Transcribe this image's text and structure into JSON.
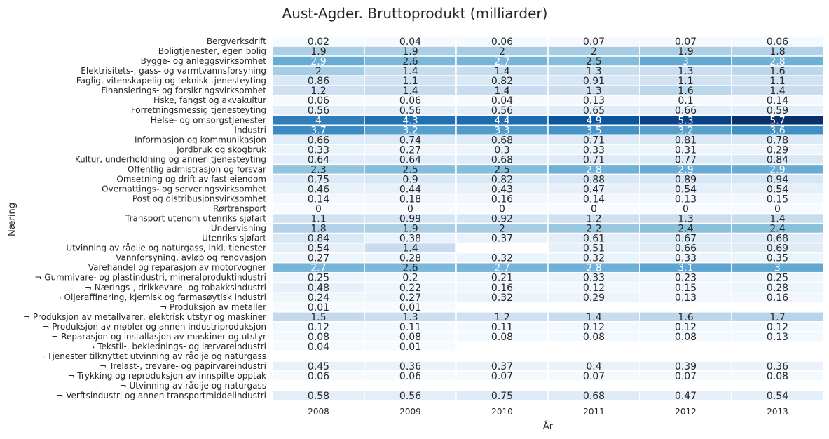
{
  "chart_data": {
    "type": "heatmap",
    "title": "Aust-Agder. Bruttoprodukt (milliarder)",
    "xlabel": "År",
    "ylabel": "Næring",
    "columns": [
      "2008",
      "2009",
      "2010",
      "2011",
      "2012",
      "2013"
    ],
    "color_scale": {
      "name": "Blues",
      "min": 0,
      "max": 5.7,
      "low": "#f7fbff",
      "high": "#08306b"
    },
    "rows": [
      {
        "label": "Bergverksdrift",
        "values": [
          "0.02",
          "0.04",
          "0.06",
          "0.07",
          "0.07",
          "0.06"
        ]
      },
      {
        "label": "Boligtjenester, egen bolig",
        "values": [
          "1.9",
          "1.9",
          "2",
          "2",
          "1.9",
          "1.8"
        ]
      },
      {
        "label": "Bygge- og anleggsvirksomhet",
        "values": [
          "2.9",
          "2.6",
          "2.7",
          "2.5",
          "3",
          "2.8"
        ]
      },
      {
        "label": "Elektrisitets-, gass- og varmtvannsforsyning",
        "values": [
          "2",
          "1.4",
          "1.4",
          "1.3",
          "1.3",
          "1.6"
        ]
      },
      {
        "label": "Faglig, vitenskapelig og teknisk tjenesteyting",
        "values": [
          "0.86",
          "1.1",
          "0.82",
          "0.91",
          "1.1",
          "1.1"
        ]
      },
      {
        "label": "Finansierings- og forsikringsvirksomhet",
        "values": [
          "1.2",
          "1.4",
          "1.4",
          "1.3",
          "1.6",
          "1.4"
        ]
      },
      {
        "label": "Fiske, fangst og akvakultur",
        "values": [
          "0.06",
          "0.06",
          "0.04",
          "0.13",
          "0.1",
          "0.14"
        ]
      },
      {
        "label": "Forretningsmessig tjenesteyting",
        "values": [
          "0.56",
          "0.56",
          "0.56",
          "0.65",
          "0.66",
          "0.59"
        ]
      },
      {
        "label": "Helse- og omsorgstjenester",
        "values": [
          "4",
          "4.3",
          "4.4",
          "4.9",
          "5.3",
          "5.7"
        ]
      },
      {
        "label": "Industri",
        "values": [
          "3.7",
          "3.2",
          "3.3",
          "3.5",
          "3.2",
          "3.6"
        ]
      },
      {
        "label": "Informasjon og kommunikasjon",
        "values": [
          "0.66",
          "0.74",
          "0.68",
          "0.71",
          "0.81",
          "0.78"
        ]
      },
      {
        "label": "Jordbruk og skogbruk",
        "values": [
          "0.33",
          "0.27",
          "0.3",
          "0.33",
          "0.31",
          "0.29"
        ]
      },
      {
        "label": "Kultur, underholdning og annen tjenesteyting",
        "values": [
          "0.64",
          "0.64",
          "0.68",
          "0.71",
          "0.77",
          "0.84"
        ]
      },
      {
        "label": "Offentlig admistrasjon og forsvar",
        "values": [
          "2.3",
          "2.5",
          "2.5",
          "2.8",
          "2.9",
          "2.9"
        ]
      },
      {
        "label": "Omsetning og drift av fast eiendom",
        "values": [
          "0.75",
          "0.9",
          "0.82",
          "0.88",
          "0.89",
          "0.94"
        ]
      },
      {
        "label": "Overnattings- og serveringsvirksomhet",
        "values": [
          "0.46",
          "0.44",
          "0.43",
          "0.47",
          "0.54",
          "0.54"
        ]
      },
      {
        "label": "Post og distribusjonsvirksomhet",
        "values": [
          "0.14",
          "0.18",
          "0.16",
          "0.14",
          "0.13",
          "0.15"
        ]
      },
      {
        "label": "Rørtransport",
        "values": [
          "0",
          "0",
          "0",
          "0",
          "0",
          "0"
        ]
      },
      {
        "label": "Transport utenom utenriks sjøfart",
        "values": [
          "1.1",
          "0.99",
          "0.92",
          "1.2",
          "1.3",
          "1.4"
        ]
      },
      {
        "label": "Undervisning",
        "values": [
          "1.8",
          "1.9",
          "2",
          "2.2",
          "2.4",
          "2.4"
        ]
      },
      {
        "label": "Utenriks sjøfart",
        "values": [
          "0.84",
          "0.38",
          "0.37",
          "0.61",
          "0.67",
          "0.68"
        ]
      },
      {
        "label": "Utvinning av råolje og naturgass, inkl. tjenester",
        "values": [
          "0.54",
          "1.4",
          null,
          "0.51",
          "0.66",
          "0.69"
        ]
      },
      {
        "label": "Vannforsyning, avløp og renovasjon",
        "values": [
          "0.27",
          "0.28",
          "0.32",
          "0.32",
          "0.33",
          "0.35"
        ]
      },
      {
        "label": "Varehandel og reparasjon av motorvogner",
        "values": [
          "2.7",
          "2.6",
          "2.7",
          "2.8",
          "3.1",
          "3"
        ]
      },
      {
        "label": "¬ Gummivare- og plastindustri, mineralproduktindustri",
        "values": [
          "0.25",
          "0.2",
          "0.21",
          "0.33",
          "0.23",
          "0.25"
        ]
      },
      {
        "label": "¬ Nærings-, drikkevare- og tobakksindustri",
        "values": [
          "0.48",
          "0.22",
          "0.16",
          "0.12",
          "0.15",
          "0.28"
        ]
      },
      {
        "label": "¬ Oljeraffinering, kjemisk og farmasøytisk industri",
        "values": [
          "0.24",
          "0.27",
          "0.32",
          "0.29",
          "0.13",
          "0.16"
        ]
      },
      {
        "label": "¬ Produksjon av metaller",
        "values": [
          "0.01",
          "0.01",
          null,
          null,
          null,
          null
        ]
      },
      {
        "label": "¬ Produksjon av metallvarer, elektrisk utstyr og maskiner",
        "values": [
          "1.5",
          "1.3",
          "1.2",
          "1.4",
          "1.6",
          "1.7"
        ]
      },
      {
        "label": "¬ Produksjon av møbler og annen industriproduksjon",
        "values": [
          "0.12",
          "0.11",
          "0.11",
          "0.12",
          "0.12",
          "0.12"
        ]
      },
      {
        "label": "¬ Reparasjon og installasjon av maskiner og utstyr",
        "values": [
          "0.08",
          "0.08",
          "0.08",
          "0.08",
          "0.08",
          "0.13"
        ]
      },
      {
        "label": "¬ Tekstil-, beklednings- og lærvareindustri",
        "values": [
          "0.04",
          "0.01",
          null,
          null,
          null,
          null
        ]
      },
      {
        "label": "¬ Tjenester tilknyttet utvinning av råolje og naturgass",
        "values": [
          null,
          null,
          null,
          null,
          null,
          null
        ]
      },
      {
        "label": "¬ Trelast-, trevare- og papirvareindustri",
        "values": [
          "0.45",
          "0.36",
          "0.37",
          "0.4",
          "0.39",
          "0.36"
        ]
      },
      {
        "label": "¬ Trykking og reproduksjon av innspilte opptak",
        "values": [
          "0.06",
          "0.06",
          "0.07",
          "0.07",
          "0.07",
          "0.08"
        ]
      },
      {
        "label": "¬ Utvinning av råolje og naturgass",
        "values": [
          null,
          null,
          null,
          null,
          null,
          null
        ]
      },
      {
        "label": "¬ Verftsindustri og annen transportmiddelindustri",
        "values": [
          "0.58",
          "0.56",
          "0.75",
          "0.68",
          "0.47",
          "0.54"
        ]
      }
    ]
  }
}
